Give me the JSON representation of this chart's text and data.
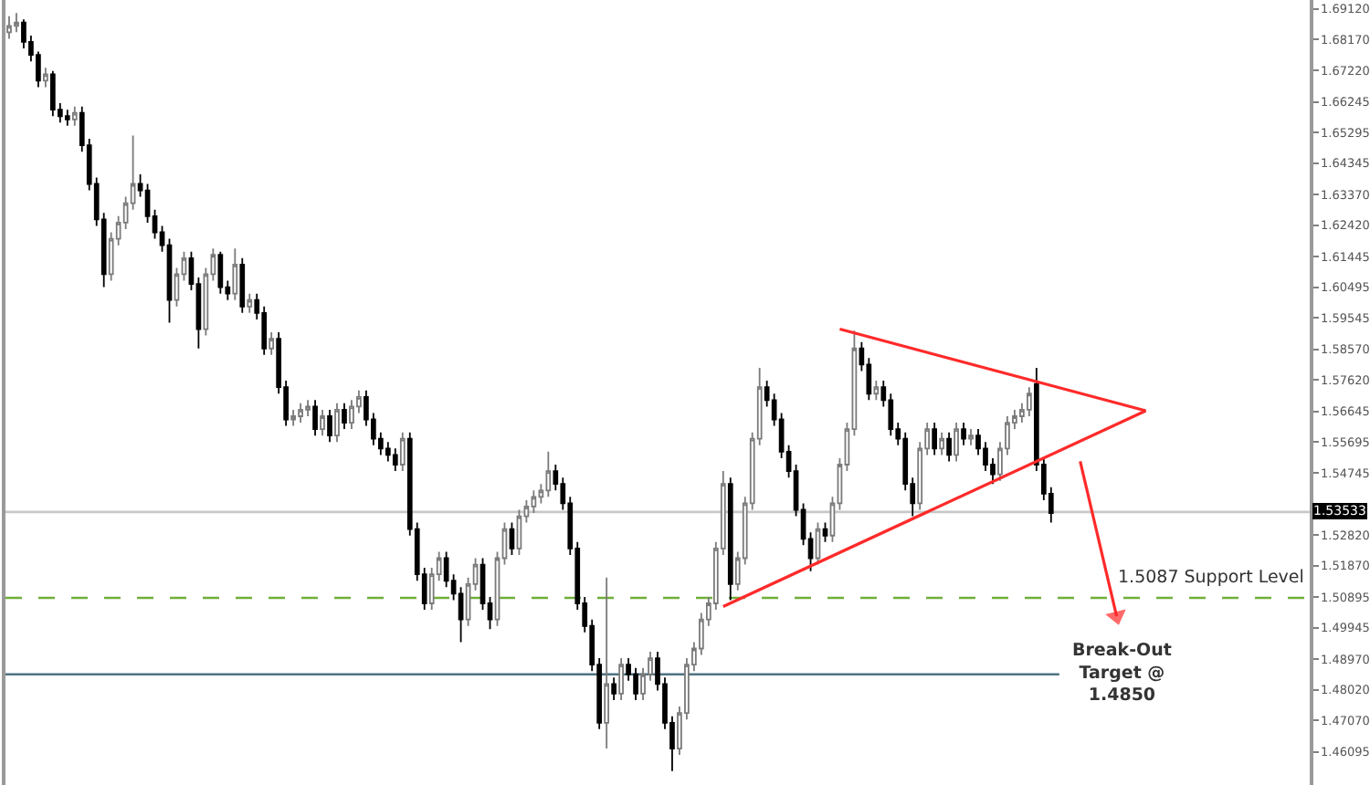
{
  "chart_data": {
    "type": "candlestick",
    "categories": [
      null,
      null,
      null,
      null,
      null,
      null,
      null,
      null,
      null,
      null,
      null,
      null,
      null,
      null,
      null,
      null,
      null,
      null,
      null,
      null,
      null,
      null,
      null,
      null,
      null,
      null,
      null,
      null,
      null,
      null,
      null,
      null,
      null,
      null,
      null,
      null,
      null,
      null,
      null,
      null,
      null,
      null,
      null,
      null,
      null,
      null,
      null,
      null,
      null,
      null,
      null,
      null,
      null,
      null,
      null,
      null,
      null,
      null,
      null,
      null,
      null,
      null,
      null,
      null,
      null,
      null,
      null,
      null,
      null,
      null,
      null,
      null,
      null,
      null,
      null,
      null,
      null,
      null,
      null,
      null,
      null,
      null,
      null,
      null,
      null,
      null,
      null,
      null,
      null,
      null,
      null,
      null,
      null,
      null,
      null,
      null,
      null,
      null,
      null,
      null,
      null,
      null,
      null,
      null,
      null,
      null,
      null,
      null,
      null,
      null,
      null,
      null,
      null,
      null,
      null,
      null,
      null,
      null,
      null,
      null,
      null,
      null,
      null,
      null,
      null,
      null,
      null,
      null,
      null,
      null,
      null,
      null,
      null,
      null,
      null,
      null,
      null,
      null,
      null,
      null,
      null,
      null,
      null,
      null,
      null,
      null,
      null,
      null,
      null,
      null,
      null,
      null,
      null,
      null,
      null,
      null,
      null,
      null,
      null,
      null,
      null,
      null,
      null,
      null,
      null,
      null,
      null,
      null,
      null,
      null,
      null,
      null,
      null,
      null,
      null,
      null,
      null,
      null,
      null
    ],
    "ohlc": [
      [
        1.684,
        1.689,
        1.682,
        1.686
      ],
      [
        1.686,
        1.69,
        1.684,
        1.687
      ],
      [
        1.687,
        1.688,
        1.679,
        1.681
      ],
      [
        1.681,
        1.683,
        1.675,
        1.677
      ],
      [
        1.677,
        1.678,
        1.667,
        1.669
      ],
      [
        1.669,
        1.673,
        1.667,
        1.671
      ],
      [
        1.671,
        1.672,
        1.658,
        1.66
      ],
      [
        1.66,
        1.662,
        1.656,
        1.658
      ],
      [
        1.658,
        1.66,
        1.655,
        1.657
      ],
      [
        1.657,
        1.661,
        1.655,
        1.659
      ],
      [
        1.659,
        1.661,
        1.647,
        1.649
      ],
      [
        1.649,
        1.651,
        1.635,
        1.637
      ],
      [
        1.637,
        1.639,
        1.624,
        1.626
      ],
      [
        1.626,
        1.628,
        1.605,
        1.609
      ],
      [
        1.609,
        1.622,
        1.607,
        1.62
      ],
      [
        1.62,
        1.627,
        1.618,
        1.625
      ],
      [
        1.625,
        1.633,
        1.623,
        1.631
      ],
      [
        1.631,
        1.652,
        1.629,
        1.637
      ],
      [
        1.637,
        1.64,
        1.633,
        1.635
      ],
      [
        1.635,
        1.637,
        1.625,
        1.627
      ],
      [
        1.627,
        1.629,
        1.62,
        1.622
      ],
      [
        1.622,
        1.624,
        1.616,
        1.618
      ],
      [
        1.618,
        1.62,
        1.594,
        1.601
      ],
      [
        1.601,
        1.611,
        1.599,
        1.609
      ],
      [
        1.609,
        1.616,
        1.607,
        1.614
      ],
      [
        1.614,
        1.616,
        1.604,
        1.606
      ],
      [
        1.606,
        1.608,
        1.586,
        1.592
      ],
      [
        1.592,
        1.611,
        1.59,
        1.609
      ],
      [
        1.609,
        1.617,
        1.607,
        1.615
      ],
      [
        1.615,
        1.616,
        1.603,
        1.605
      ],
      [
        1.605,
        1.607,
        1.601,
        1.603
      ],
      [
        1.603,
        1.617,
        1.601,
        1.612
      ],
      [
        1.612,
        1.614,
        1.597,
        1.599
      ],
      [
        1.599,
        1.603,
        1.597,
        1.601
      ],
      [
        1.601,
        1.603,
        1.595,
        1.597
      ],
      [
        1.597,
        1.599,
        1.584,
        1.586
      ],
      [
        1.586,
        1.591,
        1.584,
        1.589
      ],
      [
        1.589,
        1.591,
        1.572,
        1.574
      ],
      [
        1.574,
        1.576,
        1.562,
        1.564
      ],
      [
        1.564,
        1.567,
        1.562,
        1.565
      ],
      [
        1.565,
        1.569,
        1.563,
        1.567
      ],
      [
        1.567,
        1.57,
        1.565,
        1.568
      ],
      [
        1.568,
        1.57,
        1.559,
        1.561
      ],
      [
        1.561,
        1.567,
        1.559,
        1.565
      ],
      [
        1.565,
        1.567,
        1.557,
        1.559
      ],
      [
        1.559,
        1.569,
        1.557,
        1.567
      ],
      [
        1.567,
        1.569,
        1.561,
        1.563
      ],
      [
        1.563,
        1.57,
        1.561,
        1.568
      ],
      [
        1.568,
        1.573,
        1.566,
        1.571
      ],
      [
        1.571,
        1.573,
        1.562,
        1.564
      ],
      [
        1.564,
        1.566,
        1.556,
        1.558
      ],
      [
        1.558,
        1.56,
        1.553,
        1.555
      ],
      [
        1.555,
        1.557,
        1.551,
        1.553
      ],
      [
        1.553,
        1.555,
        1.548,
        1.55
      ],
      [
        1.55,
        1.56,
        1.548,
        1.558
      ],
      [
        1.558,
        1.56,
        1.528,
        1.53
      ],
      [
        1.53,
        1.532,
        1.514,
        1.516
      ],
      [
        1.516,
        1.518,
        1.505,
        1.507
      ],
      [
        1.507,
        1.518,
        1.505,
        1.516
      ],
      [
        1.516,
        1.523,
        1.514,
        1.521
      ],
      [
        1.521,
        1.523,
        1.512,
        1.514
      ],
      [
        1.514,
        1.516,
        1.508,
        1.51
      ],
      [
        1.51,
        1.512,
        1.495,
        1.502
      ],
      [
        1.502,
        1.515,
        1.5,
        1.513
      ],
      [
        1.513,
        1.521,
        1.511,
        1.519
      ],
      [
        1.519,
        1.521,
        1.505,
        1.507
      ],
      [
        1.507,
        1.509,
        1.499,
        1.502
      ],
      [
        1.502,
        1.523,
        1.5,
        1.521
      ],
      [
        1.521,
        1.532,
        1.519,
        1.53
      ],
      [
        1.53,
        1.532,
        1.522,
        1.524
      ],
      [
        1.524,
        1.536,
        1.522,
        1.534
      ],
      [
        1.534,
        1.539,
        1.532,
        1.537
      ],
      [
        1.537,
        1.542,
        1.535,
        1.54
      ],
      [
        1.54,
        1.544,
        1.538,
        1.542
      ],
      [
        1.542,
        1.554,
        1.54,
        1.548
      ],
      [
        1.548,
        1.55,
        1.542,
        1.544
      ],
      [
        1.544,
        1.546,
        1.536,
        1.538
      ],
      [
        1.538,
        1.54,
        1.522,
        1.524
      ],
      [
        1.524,
        1.526,
        1.505,
        1.507
      ],
      [
        1.507,
        1.509,
        1.498,
        1.5
      ],
      [
        1.5,
        1.502,
        1.486,
        1.488
      ],
      [
        1.488,
        1.49,
        1.468,
        1.47
      ],
      [
        1.47,
        1.515,
        1.462,
        1.482
      ],
      [
        1.482,
        1.484,
        1.477,
        1.479
      ],
      [
        1.479,
        1.49,
        1.477,
        1.488
      ],
      [
        1.488,
        1.49,
        1.483,
        1.485
      ],
      [
        1.485,
        1.487,
        1.477,
        1.479
      ],
      [
        1.479,
        1.487,
        1.477,
        1.485
      ],
      [
        1.485,
        1.492,
        1.483,
        1.49
      ],
      [
        1.49,
        1.492,
        1.48,
        1.482
      ],
      [
        1.482,
        1.484,
        1.468,
        1.47
      ],
      [
        1.47,
        1.472,
        1.455,
        1.462
      ],
      [
        1.462,
        1.475,
        1.46,
        1.473
      ],
      [
        1.473,
        1.49,
        1.471,
        1.488
      ],
      [
        1.488,
        1.495,
        1.486,
        1.493
      ],
      [
        1.493,
        1.504,
        1.491,
        1.502
      ],
      [
        1.502,
        1.509,
        1.5,
        1.507
      ],
      [
        1.507,
        1.526,
        1.505,
        1.524
      ],
      [
        1.524,
        1.548,
        1.522,
        1.544
      ],
      [
        1.544,
        1.546,
        1.508,
        1.513
      ],
      [
        1.513,
        1.523,
        1.511,
        1.521
      ],
      [
        1.521,
        1.54,
        1.519,
        1.538
      ],
      [
        1.538,
        1.56,
        1.536,
        1.558
      ],
      [
        1.558,
        1.58,
        1.556,
        1.574
      ],
      [
        1.574,
        1.576,
        1.568,
        1.57
      ],
      [
        1.57,
        1.572,
        1.562,
        1.564
      ],
      [
        1.564,
        1.566,
        1.552,
        1.554
      ],
      [
        1.554,
        1.556,
        1.546,
        1.548
      ],
      [
        1.548,
        1.55,
        1.534,
        1.536
      ],
      [
        1.536,
        1.538,
        1.525,
        1.527
      ],
      [
        1.527,
        1.529,
        1.517,
        1.521
      ],
      [
        1.521,
        1.532,
        1.519,
        1.53
      ],
      [
        1.53,
        1.532,
        1.526,
        1.528
      ],
      [
        1.528,
        1.54,
        1.526,
        1.538
      ],
      [
        1.538,
        1.552,
        1.536,
        1.55
      ],
      [
        1.55,
        1.563,
        1.548,
        1.561
      ],
      [
        1.561,
        1.5915,
        1.559,
        1.586
      ],
      [
        1.586,
        1.588,
        1.579,
        1.581
      ],
      [
        1.581,
        1.583,
        1.57,
        1.572
      ],
      [
        1.572,
        1.576,
        1.57,
        1.574
      ],
      [
        1.574,
        1.576,
        1.568,
        1.57
      ],
      [
        1.57,
        1.572,
        1.559,
        1.561
      ],
      [
        1.561,
        1.563,
        1.556,
        1.558
      ],
      [
        1.558,
        1.56,
        1.542,
        1.544
      ],
      [
        1.544,
        1.546,
        1.534,
        1.538
      ],
      [
        1.538,
        1.557,
        1.536,
        1.555
      ],
      [
        1.555,
        1.563,
        1.553,
        1.561
      ],
      [
        1.561,
        1.563,
        1.553,
        1.555
      ],
      [
        1.555,
        1.56,
        1.553,
        1.558
      ],
      [
        1.558,
        1.56,
        1.551,
        1.553
      ],
      [
        1.553,
        1.563,
        1.551,
        1.561
      ],
      [
        1.561,
        1.563,
        1.556,
        1.558
      ],
      [
        1.558,
        1.561,
        1.556,
        1.559
      ],
      [
        1.559,
        1.561,
        1.553,
        1.555
      ],
      [
        1.555,
        1.557,
        1.548,
        1.55
      ],
      [
        1.55,
        1.552,
        1.544,
        1.547
      ],
      [
        1.547,
        1.557,
        1.545,
        1.555
      ],
      [
        1.555,
        1.565,
        1.553,
        1.563
      ],
      [
        1.563,
        1.567,
        1.561,
        1.565
      ],
      [
        1.565,
        1.569,
        1.563,
        1.567
      ],
      [
        1.567,
        1.574,
        1.565,
        1.572
      ],
      [
        1.575,
        1.58,
        1.548,
        1.55
      ],
      [
        1.55,
        1.552,
        1.539,
        1.541
      ],
      [
        1.541,
        1.543,
        1.532,
        1.535
      ],
      null,
      null,
      null,
      null,
      null,
      null,
      null,
      null,
      null,
      null,
      null,
      null,
      null,
      null,
      null,
      null,
      null,
      null,
      null,
      null,
      null,
      null,
      null,
      null,
      null,
      null,
      null,
      null,
      null,
      null,
      null,
      null,
      null,
      null,
      null
    ],
    "series": [
      {
        "type": "line",
        "color": "#ff2a2a",
        "values": [
          null,
          null,
          null,
          null,
          null,
          null,
          null,
          null,
          null,
          null,
          null,
          null,
          null,
          null,
          null,
          null,
          null,
          null,
          null,
          null,
          null,
          null,
          null,
          null,
          null,
          null,
          null,
          null,
          null,
          null,
          null,
          null,
          null,
          null,
          null,
          null,
          null,
          null,
          null,
          null,
          null,
          null,
          null,
          null,
          null,
          null,
          null,
          null,
          null,
          null,
          null,
          null,
          null,
          null,
          null,
          null,
          null,
          null,
          null,
          null,
          null,
          null,
          null,
          null,
          null,
          null,
          null,
          null,
          null,
          null,
          null,
          null,
          null,
          null,
          null,
          null,
          null,
          null,
          null,
          null,
          null,
          null,
          null,
          null,
          null,
          null,
          null,
          null,
          null,
          null,
          null,
          null,
          null,
          null,
          null,
          null,
          null,
          null,
          null,
          null,
          null,
          null,
          null,
          null,
          null,
          null,
          null,
          null,
          null,
          null,
          null,
          null,
          null,
          null,
          1.592,
          null,
          null,
          null,
          null,
          null,
          null,
          null,
          null,
          null,
          null,
          null,
          null,
          null,
          null,
          null,
          null,
          null,
          null,
          null,
          null,
          null,
          null,
          null,
          null,
          null,
          null,
          null,
          null,
          null,
          null,
          null,
          null,
          null,
          null,
          null,
          null,
          null,
          null,
          null,
          null,
          null,
          1.5667,
          null,
          null,
          null,
          null,
          null,
          null,
          null,
          null,
          null,
          null,
          null,
          null,
          null,
          null,
          null,
          null,
          null,
          null,
          null,
          null,
          null,
          null
        ]
      },
      {
        "type": "line",
        "color": "#ff2a2a",
        "values": [
          null,
          null,
          null,
          null,
          null,
          null,
          null,
          null,
          null,
          null,
          null,
          null,
          null,
          null,
          null,
          null,
          null,
          null,
          null,
          null,
          null,
          null,
          null,
          null,
          null,
          null,
          null,
          null,
          null,
          null,
          null,
          null,
          null,
          null,
          null,
          null,
          null,
          null,
          null,
          null,
          null,
          null,
          null,
          null,
          null,
          null,
          null,
          null,
          null,
          null,
          null,
          null,
          null,
          null,
          null,
          null,
          null,
          null,
          null,
          null,
          null,
          null,
          null,
          null,
          null,
          null,
          null,
          null,
          null,
          null,
          null,
          null,
          null,
          null,
          null,
          null,
          null,
          null,
          null,
          null,
          null,
          null,
          null,
          null,
          null,
          null,
          null,
          null,
          null,
          null,
          null,
          null,
          null,
          null,
          null,
          null,
          null,
          null,
          1.506,
          null,
          null,
          null,
          null,
          null,
          null,
          null,
          null,
          null,
          null,
          null,
          null,
          null,
          null,
          null,
          null,
          null,
          null,
          null,
          null,
          null,
          null,
          null,
          null,
          null,
          null,
          null,
          null,
          null,
          null,
          null,
          null,
          null,
          null,
          null,
          null,
          null,
          null,
          null,
          null,
          null,
          null,
          null,
          null,
          null,
          null,
          null,
          null,
          null,
          null,
          null,
          null,
          null,
          null,
          null,
          null,
          null,
          1.5667,
          null,
          null,
          null,
          null,
          null,
          null,
          null,
          null,
          null,
          null,
          null,
          null,
          null,
          null,
          null,
          null,
          null,
          null,
          null,
          null,
          null,
          null
        ]
      },
      {
        "type": "line",
        "color": "#ff2a2a",
        "marker": "triangle",
        "values": [
          null,
          null,
          null,
          null,
          null,
          null,
          null,
          null,
          null,
          null,
          null,
          null,
          null,
          null,
          null,
          null,
          null,
          null,
          null,
          null,
          null,
          null,
          null,
          null,
          null,
          null,
          null,
          null,
          null,
          null,
          null,
          null,
          null,
          null,
          null,
          null,
          null,
          null,
          null,
          null,
          null,
          null,
          null,
          null,
          null,
          null,
          null,
          null,
          null,
          null,
          null,
          null,
          null,
          null,
          null,
          null,
          null,
          null,
          null,
          null,
          null,
          null,
          null,
          null,
          null,
          null,
          null,
          null,
          null,
          null,
          null,
          null,
          null,
          null,
          null,
          null,
          null,
          null,
          null,
          null,
          null,
          null,
          null,
          null,
          null,
          null,
          null,
          null,
          null,
          null,
          null,
          null,
          null,
          null,
          null,
          null,
          null,
          null,
          null,
          null,
          null,
          null,
          null,
          null,
          null,
          null,
          null,
          null,
          null,
          null,
          null,
          null,
          null,
          null,
          null,
          null,
          null,
          null,
          null,
          null,
          null,
          null,
          null,
          null,
          null,
          null,
          null,
          null,
          null,
          null,
          null,
          null,
          null,
          null,
          null,
          null,
          null,
          null,
          null,
          null,
          null,
          null,
          null,
          null,
          null,
          null,
          null,
          1.551,
          null,
          null,
          null,
          null,
          1.503,
          null,
          null,
          null,
          null,
          null,
          null,
          null,
          null,
          null,
          null,
          null,
          null,
          null,
          null,
          null,
          null,
          null,
          null,
          null,
          null,
          null,
          null,
          null,
          null,
          null,
          null
        ]
      }
    ],
    "ref_lines": [
      {
        "axis": "y",
        "value": 1.53533,
        "label": "1.53533",
        "color": "#c8c8c8"
      },
      {
        "axis": "y",
        "value": 1.5087,
        "label": "1.5087 Support Level",
        "color": "#6fae3a",
        "line_style": "dashed"
      },
      {
        "axis": "y",
        "value": 1.485,
        "label": "Break-Out\nTarget @\n1.4850",
        "color": "#4f7281"
      }
    ],
    "ylim": [
      1.4507,
      1.694
    ],
    "yticks": [
      {
        "value": 1.6912,
        "label": "1.69120"
      },
      {
        "value": 1.6817,
        "label": "1.68170"
      },
      {
        "value": 1.6722,
        "label": "1.67220"
      },
      1.66245,
      1.65295,
      1.64345,
      {
        "value": 1.6337,
        "label": "1.63370"
      },
      {
        "value": 1.6242,
        "label": "1.62420"
      },
      1.61445,
      1.60495,
      1.59545,
      {
        "value": 1.5857,
        "label": "1.58570"
      },
      {
        "value": 1.5762,
        "label": "1.57620"
      },
      1.56645,
      1.55695,
      1.54745,
      {
        "value": 1.5377,
        "label": null
      },
      {
        "value": 1.5282,
        "label": "1.52820"
      },
      {
        "value": 1.5187,
        "label": "1.51870"
      },
      1.50895,
      1.49945,
      {
        "value": 1.4897,
        "label": "1.48970"
      },
      {
        "value": 1.4802,
        "label": "1.48020"
      },
      {
        "value": 1.4707,
        "label": "1.47070"
      },
      1.46095
    ],
    "tick_labels": "y"
  }
}
